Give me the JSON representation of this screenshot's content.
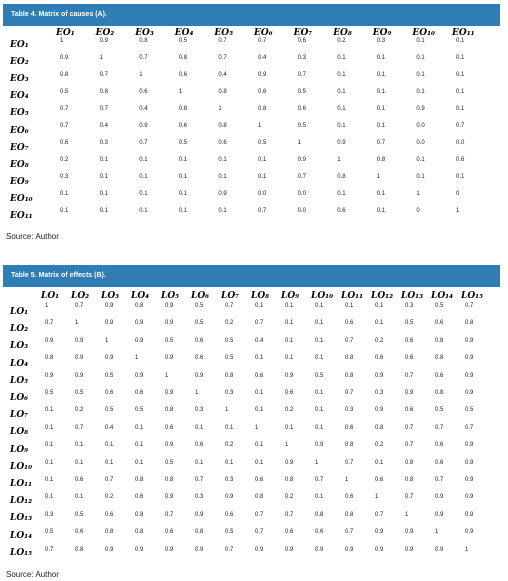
{
  "table4": {
    "title": "Table 4. Matrix of causes (A).",
    "columns": [
      "EO₁",
      "EO₂",
      "EO₃",
      "EO₄",
      "EO₅",
      "EO₆",
      "EO₇",
      "EO₈",
      "EO₉",
      "EO₁₀",
      "EO₁₁"
    ],
    "rows": [
      {
        "label": "EO₁",
        "cells": [
          "1",
          "0.9",
          "0.8",
          "0.5",
          "0.7",
          "0.7",
          "0.6",
          "0.2",
          "0.3",
          "0.1",
          "0.1"
        ]
      },
      {
        "label": "EO₂",
        "cells": [
          "0.9",
          "1",
          "0.7",
          "0.8",
          "0.7",
          "0.4",
          "0.3",
          "0.1",
          "0.1",
          "0.1",
          "0.1"
        ]
      },
      {
        "label": "EO₃",
        "cells": [
          "0.8",
          "0.7",
          "1",
          "0.6",
          "0.4",
          "0.9",
          "0.7",
          "0.1",
          "0.1",
          "0.1",
          "0.1"
        ]
      },
      {
        "label": "EO₄",
        "cells": [
          "0.5",
          "0.8",
          "0.6",
          "1",
          "0.8",
          "0.6",
          "0.5",
          "0.1",
          "0.1",
          "0.1",
          "0.1"
        ]
      },
      {
        "label": "EO₅",
        "cells": [
          "0.7",
          "0.7",
          "0.4",
          "0.8",
          "1",
          "0.8",
          "0.6",
          "0.1",
          "0.1",
          "0.9",
          "0.1"
        ]
      },
      {
        "label": "EO₆",
        "cells": [
          "0.7",
          "0.4",
          "0.9",
          "0.6",
          "0.8",
          "1",
          "0.5",
          "0.1",
          "0.1",
          "0.0",
          "0.7"
        ]
      },
      {
        "label": "EO₇",
        "cells": [
          "0.6",
          "0.3",
          "0.7",
          "0.5",
          "0.6",
          "0.5",
          "1",
          "0.9",
          "0.7",
          "0.0",
          "0.0"
        ]
      },
      {
        "label": "EO₈",
        "cells": [
          "0.2",
          "0.1",
          "0.1",
          "0.1",
          "0.1",
          "0.1",
          "0.9",
          "1",
          "0.8",
          "0.1",
          "0.6"
        ]
      },
      {
        "label": "EO₉",
        "cells": [
          "0.3",
          "0.1",
          "0.1",
          "0.1",
          "0.1",
          "0.1",
          "0.7",
          "0.8",
          "1",
          "0.1",
          "0.1"
        ]
      },
      {
        "label": "EO₁₀",
        "cells": [
          "0.1",
          "0.1",
          "0.1",
          "0.1",
          "0.9",
          "0.0",
          "0.0",
          "0.1",
          "0.1",
          "1",
          "0"
        ]
      },
      {
        "label": "EO₁₁",
        "cells": [
          "0.1",
          "0.1",
          "0.1",
          "0.1",
          "0.1",
          "0.7",
          "0.0",
          "0.6",
          "0.1",
          "0",
          "1"
        ]
      }
    ],
    "source": "Source: Author"
  },
  "table5": {
    "title": "Table 5. Matrix of effects (B).",
    "columns": [
      "LO₁",
      "LO₂",
      "LO₃",
      "LO₄",
      "LO₅",
      "LO₆",
      "LO₇",
      "LO₈",
      "LO₉",
      "LO₁₀",
      "LO₁₁",
      "LO₁₂",
      "LO₁₃",
      "LO₁₄",
      "LO₁₅"
    ],
    "rows": [
      {
        "label": "LO₁",
        "cells": [
          "1",
          "0.7",
          "0.9",
          "0.8",
          "0.9",
          "0.5",
          "0.7",
          "0.1",
          "0.1",
          "0.1",
          "0.1",
          "0.1",
          "0.3",
          "0.5",
          "0.7"
        ]
      },
      {
        "label": "LO₂",
        "cells": [
          "0.7",
          "1",
          "0.9",
          "0.9",
          "0.9",
          "0.5",
          "0.2",
          "0.7",
          "0.1",
          "0.1",
          "0.6",
          "0.1",
          "0.5",
          "0.6",
          "0.8"
        ]
      },
      {
        "label": "LO₃",
        "cells": [
          "0.9",
          "0.9",
          "1",
          "0.9",
          "0.5",
          "0.6",
          "0.5",
          "0.4",
          "0.1",
          "0.1",
          "0.7",
          "0.2",
          "0.6",
          "0.8",
          "0.9"
        ]
      },
      {
        "label": "LO₄",
        "cells": [
          "0.8",
          "0.9",
          "0.9",
          "1",
          "0.9",
          "0.6",
          "0.5",
          "0.1",
          "0.1",
          "0.1",
          "0.8",
          "0.6",
          "0.6",
          "0.8",
          "0.9"
        ]
      },
      {
        "label": "LO₅",
        "cells": [
          "0.9",
          "0.9",
          "0.5",
          "0.9",
          "1",
          "0.9",
          "0.8",
          "0.6",
          "0.9",
          "0.5",
          "0.8",
          "0.9",
          "0.7",
          "0.6",
          "0.9"
        ]
      },
      {
        "label": "LO₆",
        "cells": [
          "0.5",
          "0.5",
          "0.6",
          "0.6",
          "0.9",
          "1",
          "0.3",
          "0.1",
          "0.6",
          "0.1",
          "0.7",
          "0.3",
          "0.9",
          "0.8",
          "0.9"
        ]
      },
      {
        "label": "LO₇",
        "cells": [
          "0.1",
          "0.2",
          "0.5",
          "0.5",
          "0.8",
          "0.3",
          "1",
          "0.1",
          "0.2",
          "0.1",
          "0.3",
          "0.9",
          "0.6",
          "0.5",
          "0.5"
        ]
      },
      {
        "label": "LO₈",
        "cells": [
          "0.1",
          "0.7",
          "0.4",
          "0.1",
          "0.6",
          "0.1",
          "0.1",
          "1",
          "0.1",
          "0.1",
          "0.6",
          "0.8",
          "0.7",
          "0.7",
          "0.7"
        ]
      },
      {
        "label": "LO₉",
        "cells": [
          "0.1",
          "0.1",
          "0.1",
          "0.1",
          "0.9",
          "0.6",
          "0.2",
          "0.1",
          "1",
          "0.9",
          "0.8",
          "0.2",
          "0.7",
          "0.6",
          "0.9"
        ]
      },
      {
        "label": "LO₁₀",
        "cells": [
          "0.1",
          "0.1",
          "0.1",
          "0.1",
          "0.5",
          "0.1",
          "0.1",
          "0.1",
          "0.9",
          "1",
          "0.7",
          "0.1",
          "0.8",
          "0.6",
          "0.9"
        ]
      },
      {
        "label": "LO₁₁",
        "cells": [
          "0.1",
          "0.6",
          "0.7",
          "0.8",
          "0.8",
          "0.7",
          "0.3",
          "0.6",
          "0.8",
          "0.7",
          "1",
          "0.6",
          "0.8",
          "0.7",
          "0.9"
        ]
      },
      {
        "label": "LO₁₂",
        "cells": [
          "0.1",
          "0.1",
          "0.2",
          "0.6",
          "0.9",
          "0.3",
          "0.9",
          "0.8",
          "0.2",
          "0.1",
          "0.6",
          "1",
          "0.7",
          "0.9",
          "0.9"
        ]
      },
      {
        "label": "LO₁₃",
        "cells": [
          "0.3",
          "0.5",
          "0.6",
          "0.8",
          "0.7",
          "0.9",
          "0.6",
          "0.7",
          "0.7",
          "0.8",
          "0.8",
          "0.7",
          "1",
          "0.9",
          "0.9"
        ]
      },
      {
        "label": "LO₁₄",
        "cells": [
          "0.5",
          "0.6",
          "0.8",
          "0.8",
          "0.6",
          "0.8",
          "0.5",
          "0.7",
          "0.6",
          "0.6",
          "0.7",
          "0.9",
          "0.9",
          "1",
          "0.9"
        ]
      },
      {
        "label": "LO₁₅",
        "cells": [
          "0.7",
          "0.8",
          "0.9",
          "0.9",
          "0.9",
          "0.9",
          "0.7",
          "0.9",
          "0.9",
          "0.9",
          "0.9",
          "0.9",
          "0.9",
          "0.9",
          "1"
        ]
      }
    ],
    "source": "Source: Author"
  }
}
